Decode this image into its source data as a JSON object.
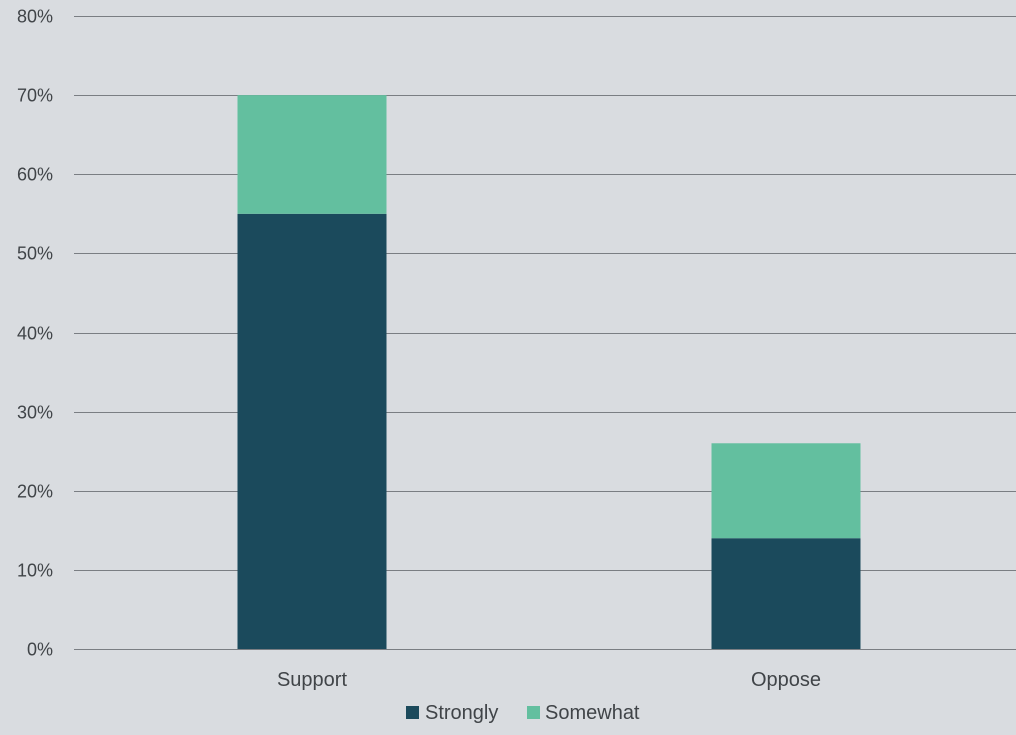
{
  "chart_data": {
    "type": "bar",
    "stacked": true,
    "categories": [
      "Support",
      "Oppose"
    ],
    "series": [
      {
        "name": "Strongly",
        "values": [
          55,
          14
        ],
        "color": "#1b4a5c"
      },
      {
        "name": "Somewhat",
        "values": [
          15,
          12
        ],
        "color": "#63bf9f"
      }
    ],
    "ylim": [
      0,
      80
    ],
    "yticks": [
      0,
      10,
      20,
      30,
      40,
      50,
      60,
      70,
      80
    ],
    "y_tick_suffix": "%",
    "grid": true,
    "legend_position": "bottom",
    "title": "",
    "xlabel": "",
    "ylabel": ""
  },
  "colors": {
    "background": "#d9dce0",
    "gridline": "#7a7e83",
    "text": "#404448"
  }
}
